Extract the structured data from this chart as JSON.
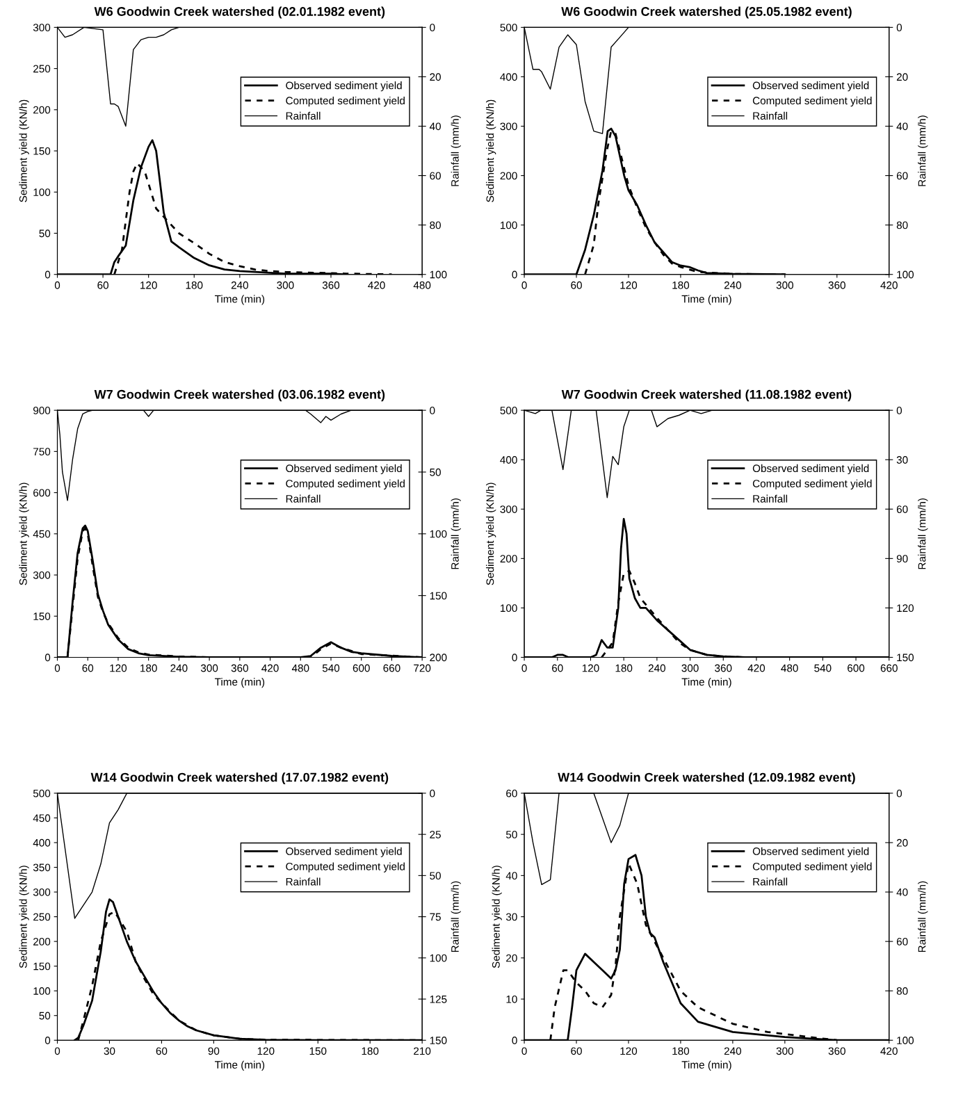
{
  "chart_data": [
    {
      "type": "line",
      "title": "W6 Goodwin Creek watershed (02.01.1982 event)",
      "xlabel": "Time (min)",
      "ylabel": "Sediment yield (KN/h)",
      "y2label": "Rainfall (mm/h)",
      "xlim": [
        0,
        480
      ],
      "xticks": [
        0,
        60,
        120,
        180,
        240,
        300,
        360,
        420,
        480
      ],
      "ylim": [
        0,
        300
      ],
      "yticks": [
        0,
        50,
        100,
        150,
        200,
        250,
        300
      ],
      "y2lim": [
        100,
        0
      ],
      "y2ticks": [
        0,
        20,
        40,
        60,
        80,
        100
      ],
      "legend": "top right",
      "grid": false,
      "series": [
        {
          "name": "Observed sediment yield",
          "color": "#000000",
          "line_style": "solid",
          "x": [
            0,
            70,
            75,
            80,
            90,
            100,
            110,
            120,
            125,
            130,
            140,
            150,
            160,
            180,
            200,
            220,
            240,
            260,
            300,
            360,
            380
          ],
          "values": [
            0,
            0,
            15,
            22,
            35,
            90,
            130,
            155,
            163,
            150,
            75,
            40,
            33,
            20,
            11,
            6,
            4,
            3,
            1,
            1,
            0
          ]
        },
        {
          "name": "Computed sediment yield",
          "color": "#000000",
          "line_style": "dashed",
          "x": [
            75,
            85,
            95,
            100,
            105,
            115,
            120,
            130,
            140,
            150,
            160,
            180,
            200,
            220,
            240,
            260,
            280,
            300,
            340,
            380,
            440
          ],
          "values": [
            0,
            30,
            100,
            125,
            135,
            125,
            110,
            80,
            70,
            60,
            50,
            38,
            25,
            15,
            10,
            6,
            4,
            3,
            2,
            1,
            0
          ]
        },
        {
          "name": "Rainfall",
          "color": "#000000",
          "line_style": "solid",
          "axis": "y2",
          "x": [
            0,
            10,
            20,
            35,
            60,
            70,
            75,
            80,
            90,
            100,
            110,
            120,
            130,
            140,
            150,
            160,
            480
          ],
          "values": [
            0,
            4,
            3,
            0,
            1,
            31,
            31,
            32,
            40,
            9,
            5,
            4,
            4,
            3,
            1,
            0,
            0
          ]
        }
      ]
    },
    {
      "type": "line",
      "title": "W6 Goodwin Creek watershed (25.05.1982 event)",
      "xlabel": "Time (min)",
      "ylabel": "Sediment yield (KN/h)",
      "y2label": "Rainfall (mm/h)",
      "xlim": [
        0,
        420
      ],
      "xticks": [
        0,
        60,
        120,
        180,
        240,
        300,
        360,
        420
      ],
      "ylim": [
        0,
        500
      ],
      "yticks": [
        0,
        100,
        200,
        300,
        400,
        500
      ],
      "y2lim": [
        100,
        0
      ],
      "y2ticks": [
        0,
        20,
        40,
        60,
        80,
        100
      ],
      "legend": "top right",
      "grid": false,
      "series": [
        {
          "name": "Observed sediment yield",
          "color": "#000000",
          "line_style": "solid",
          "x": [
            0,
            60,
            70,
            80,
            90,
            96,
            100,
            105,
            115,
            120,
            130,
            140,
            150,
            160,
            170,
            180,
            190,
            200,
            210,
            240,
            300
          ],
          "values": [
            0,
            0,
            50,
            120,
            210,
            290,
            295,
            280,
            200,
            170,
            140,
            100,
            65,
            45,
            25,
            18,
            15,
            8,
            3,
            1,
            0
          ]
        },
        {
          "name": "Computed sediment yield",
          "color": "#000000",
          "line_style": "dashed",
          "x": [
            70,
            80,
            85,
            95,
            100,
            105,
            110,
            120,
            130,
            140,
            150,
            160,
            170,
            180,
            200,
            240,
            300
          ],
          "values": [
            0,
            60,
            140,
            250,
            290,
            285,
            250,
            180,
            135,
            95,
            65,
            40,
            22,
            15,
            5,
            1,
            0
          ]
        },
        {
          "name": "Rainfall",
          "color": "#000000",
          "line_style": "solid",
          "axis": "y2",
          "x": [
            0,
            10,
            17,
            20,
            30,
            40,
            50,
            60,
            70,
            80,
            90,
            100,
            110,
            120,
            420
          ],
          "values": [
            0,
            17,
            17,
            18,
            25,
            8,
            3,
            7,
            30,
            42,
            43,
            8,
            4,
            0,
            0
          ]
        }
      ]
    },
    {
      "type": "line",
      "title": "W7 Goodwin Creek watershed (03.06.1982 event)",
      "xlabel": "Time (min)",
      "ylabel": "Sediment yield (KN/h)",
      "y2label": "Rainfall (mm/h)",
      "xlim": [
        0,
        720
      ],
      "xticks": [
        0,
        60,
        120,
        180,
        240,
        300,
        360,
        420,
        480,
        540,
        600,
        660,
        720
      ],
      "ylim": [
        0,
        900
      ],
      "yticks": [
        0,
        150,
        300,
        450,
        600,
        750,
        900
      ],
      "y2lim": [
        200,
        0
      ],
      "y2ticks": [
        0,
        50,
        100,
        150,
        200
      ],
      "legend": "top right",
      "grid": false,
      "series": [
        {
          "name": "Observed sediment yield",
          "color": "#000000",
          "line_style": "solid",
          "x": [
            0,
            20,
            30,
            40,
            50,
            55,
            60,
            70,
            80,
            90,
            100,
            120,
            140,
            160,
            180,
            240,
            300,
            480,
            500,
            520,
            530,
            540,
            560,
            580,
            600,
            660,
            720
          ],
          "values": [
            0,
            0,
            200,
            380,
            470,
            480,
            460,
            350,
            230,
            170,
            120,
            65,
            30,
            15,
            8,
            2,
            0,
            0,
            5,
            35,
            45,
            55,
            35,
            20,
            15,
            5,
            0
          ]
        },
        {
          "name": "Computed sediment yield",
          "color": "#000000",
          "line_style": "dashed",
          "x": [
            20,
            30,
            40,
            50,
            55,
            60,
            70,
            80,
            90,
            100,
            120,
            140,
            160,
            180,
            240,
            300,
            500,
            520,
            540,
            560,
            600,
            720
          ],
          "values": [
            0,
            180,
            360,
            460,
            470,
            450,
            330,
            220,
            165,
            125,
            70,
            35,
            18,
            10,
            3,
            0,
            0,
            30,
            50,
            35,
            12,
            0
          ]
        },
        {
          "name": "Rainfall",
          "color": "#000000",
          "line_style": "solid",
          "axis": "y2",
          "x": [
            0,
            5,
            10,
            20,
            30,
            40,
            50,
            60,
            70,
            170,
            180,
            190,
            490,
            500,
            520,
            530,
            540,
            560,
            580,
            720
          ],
          "values": [
            0,
            20,
            50,
            73,
            40,
            15,
            3,
            1,
            0,
            0,
            5,
            0,
            0,
            3,
            10,
            5,
            8,
            3,
            0,
            0
          ]
        }
      ]
    },
    {
      "type": "line",
      "title": "W7 Goodwin Creek watershed (11.08.1982 event)",
      "xlabel": "Time (min)",
      "ylabel": "Sediment yield (KN/h)",
      "y2label": "Rainfall (mm/h)",
      "xlim": [
        0,
        660
      ],
      "xticks": [
        0,
        60,
        120,
        180,
        240,
        300,
        360,
        420,
        480,
        540,
        600,
        660
      ],
      "ylim": [
        0,
        500
      ],
      "yticks": [
        0,
        100,
        200,
        300,
        400,
        500
      ],
      "y2lim": [
        150,
        0
      ],
      "y2ticks": [
        0,
        30,
        60,
        90,
        120,
        150
      ],
      "legend": "top right",
      "grid": false,
      "series": [
        {
          "name": "Observed sediment yield",
          "color": "#000000",
          "line_style": "solid",
          "x": [
            0,
            50,
            60,
            70,
            80,
            120,
            130,
            140,
            150,
            160,
            170,
            175,
            180,
            185,
            190,
            200,
            210,
            220,
            240,
            260,
            280,
            300,
            330,
            360,
            400,
            660
          ],
          "values": [
            0,
            0,
            5,
            5,
            0,
            0,
            5,
            35,
            20,
            20,
            100,
            220,
            280,
            250,
            160,
            120,
            100,
            100,
            75,
            55,
            35,
            15,
            5,
            2,
            0,
            0
          ]
        },
        {
          "name": "Computed sediment yield",
          "color": "#000000",
          "line_style": "dashed",
          "x": [
            140,
            160,
            170,
            180,
            190,
            200,
            210,
            240,
            260,
            280,
            300,
            330,
            360,
            400
          ],
          "values": [
            0,
            30,
            110,
            170,
            175,
            150,
            120,
            80,
            55,
            30,
            15,
            5,
            2,
            0
          ]
        },
        {
          "name": "Rainfall",
          "color": "#000000",
          "line_style": "solid",
          "axis": "y2",
          "x": [
            0,
            20,
            30,
            50,
            70,
            85,
            130,
            150,
            160,
            170,
            180,
            190,
            230,
            240,
            260,
            280,
            300,
            320,
            340,
            660
          ],
          "values": [
            0,
            2,
            0,
            0,
            36,
            0,
            0,
            53,
            28,
            33,
            10,
            0,
            0,
            10,
            5,
            3,
            0,
            2,
            0,
            0
          ]
        }
      ]
    },
    {
      "type": "line",
      "title": "W14 Goodwin Creek watershed (17.07.1982 event)",
      "xlabel": "Time (min)",
      "ylabel": "Sediment yield (KN/h)",
      "y2label": "Rainfall (mm/h)",
      "xlim": [
        0,
        210
      ],
      "xticks": [
        0,
        30,
        60,
        90,
        120,
        150,
        180,
        210
      ],
      "ylim": [
        0,
        500
      ],
      "yticks": [
        0,
        50,
        100,
        150,
        200,
        250,
        300,
        350,
        400,
        450,
        500
      ],
      "y2lim": [
        150,
        0
      ],
      "y2ticks": [
        0,
        25,
        50,
        75,
        100,
        125,
        150
      ],
      "legend": "top right",
      "grid": false,
      "series": [
        {
          "name": "Observed sediment yield",
          "color": "#000000",
          "line_style": "solid",
          "x": [
            10,
            12,
            15,
            20,
            25,
            28,
            30,
            32,
            35,
            40,
            45,
            50,
            55,
            60,
            65,
            70,
            75,
            80,
            90,
            105,
            120,
            150,
            210
          ],
          "values": [
            0,
            5,
            30,
            80,
            180,
            260,
            285,
            280,
            250,
            200,
            160,
            130,
            100,
            75,
            55,
            40,
            28,
            20,
            10,
            3,
            1,
            0,
            0
          ]
        },
        {
          "name": "Computed sediment yield",
          "color": "#000000",
          "line_style": "dashed",
          "x": [
            12,
            15,
            20,
            25,
            30,
            33,
            40,
            45,
            50,
            55,
            60,
            70,
            80,
            90,
            105,
            120,
            210
          ],
          "values": [
            0,
            40,
            110,
            200,
            255,
            260,
            220,
            160,
            125,
            95,
            75,
            40,
            20,
            10,
            3,
            1,
            0
          ]
        },
        {
          "name": "Rainfall",
          "color": "#000000",
          "line_style": "solid",
          "axis": "y2",
          "x": [
            0,
            10,
            20,
            25,
            30,
            35,
            40,
            210
          ],
          "values": [
            0,
            76,
            60,
            43,
            18,
            10,
            0,
            0
          ]
        }
      ]
    },
    {
      "type": "line",
      "title": "W14 Goodwin Creek watershed (12.09.1982 event)",
      "xlabel": "Time (min)",
      "ylabel": "Sediment yield (KN/h)",
      "y2label": "Rainfall (mm/h)",
      "xlim": [
        0,
        420
      ],
      "xticks": [
        0,
        60,
        120,
        180,
        240,
        300,
        360,
        420
      ],
      "ylim": [
        0,
        60
      ],
      "yticks": [
        0,
        10,
        20,
        30,
        40,
        50,
        60
      ],
      "y2lim": [
        100,
        0
      ],
      "y2ticks": [
        0,
        20,
        40,
        60,
        80,
        100
      ],
      "legend": "top right",
      "grid": false,
      "series": [
        {
          "name": "Observed sediment yield",
          "color": "#000000",
          "line_style": "solid",
          "x": [
            0,
            50,
            55,
            60,
            70,
            80,
            90,
            100,
            105,
            110,
            115,
            120,
            128,
            135,
            140,
            145,
            150,
            160,
            180,
            200,
            240,
            300,
            360,
            420
          ],
          "values": [
            0,
            0,
            8,
            17,
            21,
            19,
            17,
            15,
            17,
            22,
            38,
            44,
            45,
            40,
            30,
            26,
            25,
            19,
            9,
            4.5,
            2,
            0.8,
            0,
            0
          ]
        },
        {
          "name": "Computed sediment yield",
          "color": "#000000",
          "line_style": "dashed",
          "x": [
            30,
            35,
            45,
            50,
            60,
            70,
            80,
            90,
            100,
            105,
            110,
            120,
            130,
            140,
            150,
            160,
            180,
            200,
            240,
            280,
            320,
            360
          ],
          "values": [
            0,
            8,
            17,
            17,
            14,
            12,
            9,
            8,
            11,
            18,
            30,
            43,
            38,
            28,
            24,
            20,
            12,
            8,
            4,
            2,
            1,
            0
          ]
        },
        {
          "name": "Rainfall",
          "color": "#000000",
          "line_style": "solid",
          "axis": "y2",
          "x": [
            0,
            10,
            20,
            30,
            40,
            80,
            90,
            100,
            110,
            120,
            420
          ],
          "values": [
            0,
            20,
            37,
            35,
            0,
            0,
            10,
            20,
            13,
            0,
            0
          ]
        }
      ]
    }
  ]
}
